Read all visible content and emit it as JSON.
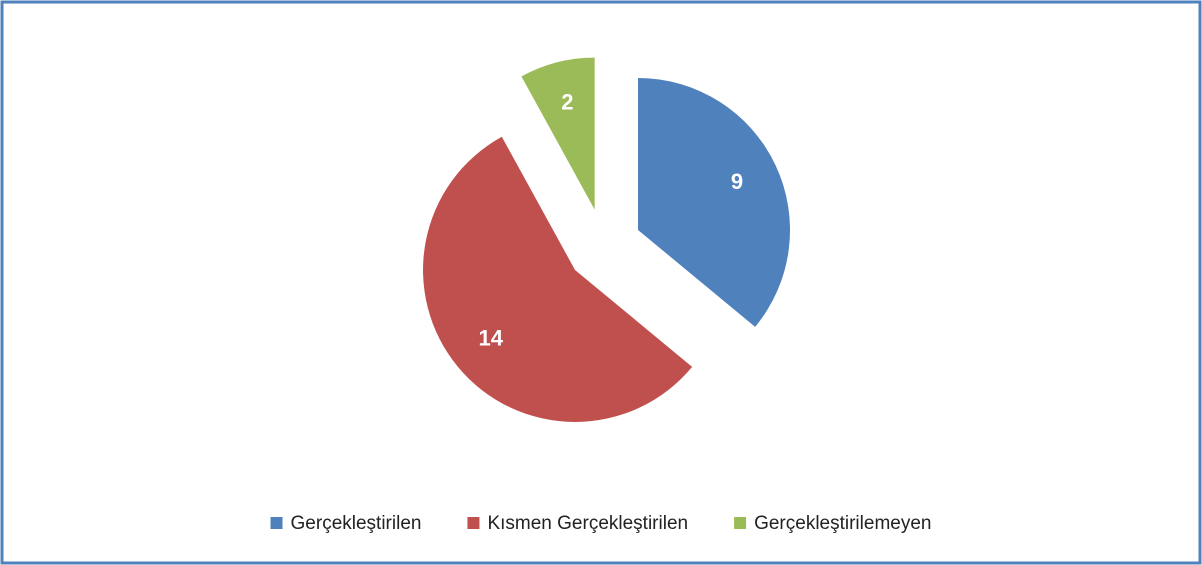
{
  "chart_data": {
    "type": "pie",
    "categories": [
      "Gerçekleştirilen",
      "Kısmen Gerçekleştirilen",
      "Gerçekleştirilemeyen"
    ],
    "values": [
      9,
      14,
      2
    ],
    "colors": [
      "#4f81bd",
      "#c0504d",
      "#9bbb59"
    ],
    "legend": "bottom"
  }
}
